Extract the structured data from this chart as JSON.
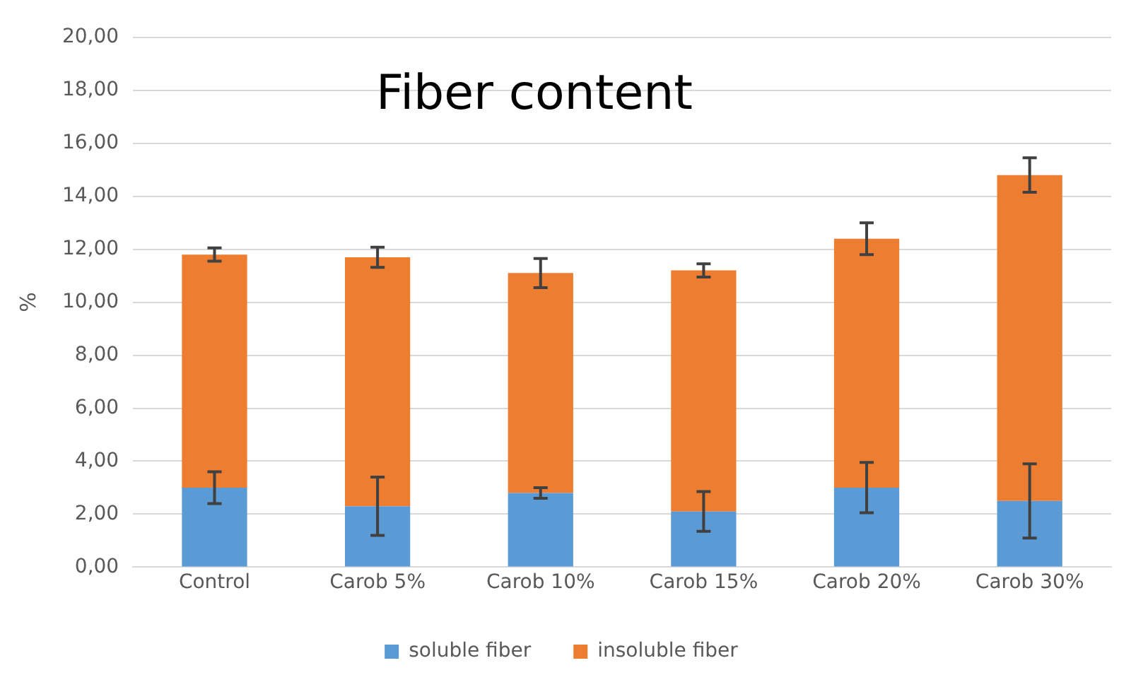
{
  "chart_data": {
    "type": "bar",
    "title": "Fiber content",
    "ylabel": "%",
    "stacked": true,
    "categories": [
      "Control",
      "Carob 5%",
      "Carob 10%",
      "Carob 15%",
      "Carob 20%",
      "Carob 30%"
    ],
    "series": [
      {
        "name": "soluble fiber",
        "color": "#5b9bd5",
        "values": [
          3.0,
          2.3,
          2.8,
          2.1,
          3.0,
          2.5
        ],
        "errors": [
          0.6,
          1.1,
          0.2,
          0.75,
          0.95,
          1.4
        ]
      },
      {
        "name": "insoluble fiber",
        "color": "#ed7d31",
        "values": [
          8.8,
          9.4,
          8.3,
          9.1,
          9.4,
          12.3
        ],
        "errors": [
          0.25,
          0.38,
          0.55,
          0.25,
          0.6,
          0.65
        ]
      }
    ],
    "ylim": [
      0,
      20
    ],
    "yticks": [
      {
        "value": 0,
        "label": "0,00"
      },
      {
        "value": 2,
        "label": "2,00"
      },
      {
        "value": 4,
        "label": "4,00"
      },
      {
        "value": 6,
        "label": "6,00"
      },
      {
        "value": 8,
        "label": "8,00"
      },
      {
        "value": 10,
        "label": "10,00"
      },
      {
        "value": 12,
        "label": "12,00"
      },
      {
        "value": 14,
        "label": "14,00"
      },
      {
        "value": 16,
        "label": "16,00"
      },
      {
        "value": 18,
        "label": "18,00"
      },
      {
        "value": 20,
        "label": "20,00"
      }
    ],
    "grid": "y",
    "legend": "bottom"
  }
}
